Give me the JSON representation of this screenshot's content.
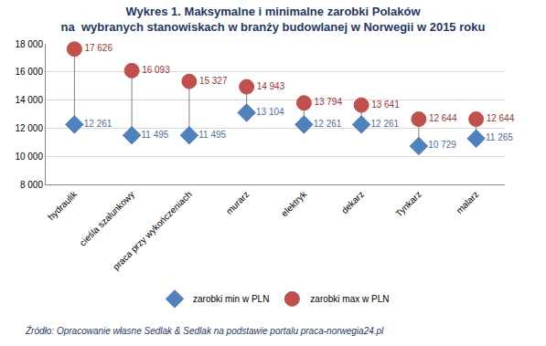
{
  "chart_data": {
    "type": "scatter",
    "title": "Wykres 1. Maksymalne i minimalne zarobki Polaków\nna  wybranych stanowiskach w branży budowlanej w Norwegii w 2015 roku",
    "categories": [
      "hydraulik",
      "cieśla szalunkowy",
      "praca przy wykończeniach",
      "murarz",
      "elektryk",
      "dekarz",
      "Tynkarz",
      "malarz"
    ],
    "series": [
      {
        "name": "zarobki min w PLN",
        "color": "#4F81BD",
        "marker": "diamond",
        "values": [
          12261,
          11495,
          11495,
          13104,
          12261,
          12261,
          10729,
          11265
        ],
        "value_labels": [
          "12 261",
          "11 495",
          "11 495",
          "13 104",
          "12 261",
          "12 261",
          "10 729",
          "11 265"
        ]
      },
      {
        "name": "zarobki max w PLN",
        "color": "#C0504D",
        "marker": "circle",
        "values": [
          17626,
          16093,
          15327,
          14943,
          13794,
          13641,
          12644,
          12644
        ],
        "value_labels": [
          "17 626",
          "16 093",
          "15 327",
          "14 943",
          "13 794",
          "13 641",
          "12 644",
          "12 644"
        ]
      }
    ],
    "ylim": [
      8000,
      18000
    ],
    "yticks": [
      {
        "value": 8000,
        "label": "8 000"
      },
      {
        "value": 10000,
        "label": "10 000"
      },
      {
        "value": 12000,
        "label": "12 000"
      },
      {
        "value": 14000,
        "label": "14 000"
      },
      {
        "value": 16000,
        "label": "16 000"
      },
      {
        "value": 18000,
        "label": "18 000"
      }
    ],
    "grid": true,
    "legend": "bottom",
    "data_labels": true,
    "annotations": [
      "Źródło: Opracowanie własne Sedlak & Sedlak na podstawie portalu praca-norwegia24.pl"
    ]
  }
}
